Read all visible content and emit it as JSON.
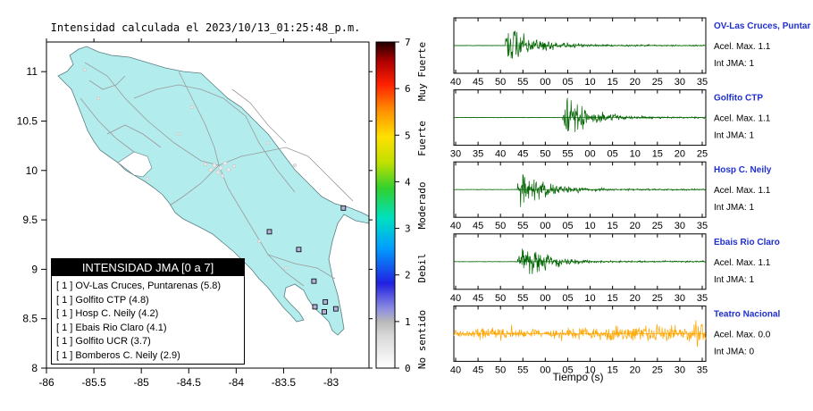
{
  "map": {
    "title": "Intensidad calculada el 2023/10/13_01:25:48_p.m.",
    "x_ticks": [
      "-86",
      "-85.5",
      "-85",
      "-84.5",
      "-84",
      "-83.5",
      "-83"
    ],
    "y_ticks": [
      "11",
      "10.5",
      "10",
      "9.5",
      "9",
      "8.5",
      "8"
    ],
    "land_color": "#b3eced",
    "stations": [
      {
        "lon": -82.87,
        "lat": 9.62
      },
      {
        "lon": -83.65,
        "lat": 9.38
      },
      {
        "lon": -83.34,
        "lat": 9.2
      },
      {
        "lon": -83.18,
        "lat": 8.88
      },
      {
        "lon": -83.06,
        "lat": 8.67
      },
      {
        "lon": -82.95,
        "lat": 8.6
      },
      {
        "lon": -83.17,
        "lat": 8.62
      },
      {
        "lon": -83.07,
        "lat": 8.57
      }
    ]
  },
  "colorbar": {
    "ticks": [
      "0",
      "1",
      "2",
      "3",
      "4",
      "5",
      "6",
      "7"
    ],
    "labels": [
      "No sentido",
      "Debil",
      "Moderado",
      "Fuerte",
      "Muy Fuerte"
    ]
  },
  "legend": {
    "title": "INTENSIDAD JMA [0 a 7]",
    "items": [
      "[ 1 ]  OV-Las Cruces, Puntarenas (5.8)",
      "[ 1 ]  Golfito CTP (4.8)",
      "[ 1 ]  Hosp C. Neily (4.2)",
      "[ 1 ]  Ebais Rio Claro (4.1)",
      "[ 1 ]  Golfito UCR (3.7)",
      "[ 1 ]  Bomberos C. Neily (2.9)"
    ]
  },
  "waveforms": {
    "xlabel": "Tiempo (s)",
    "traces": [
      {
        "name": "OV-Las Cruces, Puntar",
        "accel": "Acel. Max. 1.1",
        "jma": "Int JMA: 1",
        "color": "#006400",
        "ticks": [
          "40",
          "45",
          "50",
          "55",
          "00",
          "05",
          "10",
          "15",
          "20",
          "25",
          "30",
          "35"
        ],
        "onset": 0.2,
        "amp": 0.9
      },
      {
        "name": "Golfito CTP",
        "accel": "Acel. Max. 1.1",
        "jma": "Int JMA: 1",
        "color": "#006400",
        "ticks": [
          "30",
          "35",
          "40",
          "45",
          "50",
          "55",
          "00",
          "05",
          "10",
          "15",
          "20",
          "25"
        ],
        "onset": 0.43,
        "amp": 0.85
      },
      {
        "name": "Hosp C. Neily",
        "accel": "Acel. Max. 1.1",
        "jma": "Int JMA: 1",
        "color": "#006400",
        "ticks": [
          "40",
          "45",
          "50",
          "55",
          "00",
          "05",
          "10",
          "15",
          "20",
          "25",
          "30",
          "35"
        ],
        "onset": 0.25,
        "amp": 0.88
      },
      {
        "name": "Ebais Rio Claro",
        "accel": "Acel. Max. 1.1",
        "jma": "Int JMA: 1",
        "color": "#006400",
        "ticks": [
          "40",
          "45",
          "50",
          "55",
          "00",
          "05",
          "10",
          "15",
          "20",
          "25",
          "30",
          "35"
        ],
        "onset": 0.25,
        "amp": 0.92
      },
      {
        "name": "Teatro Nacional",
        "accel": "Acel. Max. 0.0",
        "jma": "Int JMA: 0",
        "color": "#ffa500",
        "ticks": [
          "40",
          "45",
          "50",
          "55",
          "00",
          "05",
          "10",
          "15",
          "20",
          "25",
          "30",
          "35"
        ],
        "onset": 0,
        "amp": 0.35
      }
    ]
  }
}
